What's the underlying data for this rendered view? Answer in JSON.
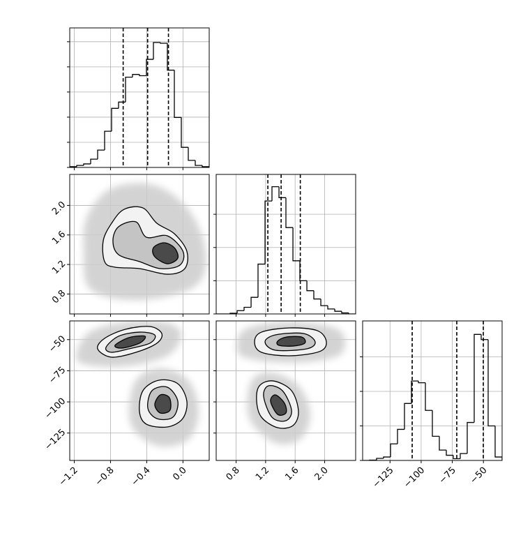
{
  "chart_data": {
    "type": "corner",
    "grid": true,
    "axes": [
      {
        "lim": [
          -1.25,
          0.29
        ],
        "ticks": [
          {
            "value": -1.2,
            "label": "−1.2"
          },
          {
            "value": -0.8,
            "label": "−0.8"
          },
          {
            "value": -0.4,
            "label": "−0.4"
          },
          {
            "value": 0,
            "label": "0.0"
          }
        ]
      },
      {
        "lim": [
          0.53,
          2.42
        ],
        "ticks": [
          0.8,
          1.2,
          1.6,
          {
            "value": 2,
            "label": "2.0"
          }
        ]
      },
      {
        "lim": [
          -147,
          -35
        ],
        "ticks": [
          {
            "value": -125,
            "label": "−125"
          },
          {
            "value": -100,
            "label": "−100"
          },
          {
            "value": -75,
            "label": "−75"
          },
          {
            "value": -50,
            "label": "−50"
          }
        ]
      }
    ],
    "histograms": [
      {
        "color": "#000000",
        "bins": [
          -1.25,
          -1.173,
          -1.096,
          -1.019,
          -0.942,
          -0.865,
          -0.788,
          -0.711,
          -0.634,
          -0.557,
          -0.48,
          -0.403,
          -0.326,
          -0.249,
          -0.172,
          -0.095,
          -0.018,
          0.059,
          0.136,
          0.213,
          0.29
        ],
        "counts": [
          0.03,
          0.08,
          0.14,
          0.33,
          0.69,
          1.44,
          2.35,
          2.6,
          3.59,
          3.7,
          3.65,
          4.3,
          4.97,
          4.94,
          3.87,
          1.99,
          0.8,
          0.28,
          0.08,
          0.03
        ],
        "ylim": [
          0,
          5.55
        ],
        "yticks": [
          0,
          1,
          2,
          3,
          4,
          5
        ],
        "quantiles": [
          -0.66,
          -0.39,
          -0.16
        ]
      },
      {
        "color": "#000000",
        "bins": [
          0.53,
          0.625,
          0.719,
          0.814,
          0.908,
          1.003,
          1.097,
          1.192,
          1.286,
          1.381,
          1.475,
          1.57,
          1.664,
          1.759,
          1.853,
          1.948,
          2.042,
          2.137,
          2.231,
          2.326,
          2.42
        ],
        "counts": [
          0,
          0,
          0.02,
          0.1,
          0.2,
          0.5,
          1.5,
          3.4,
          3.83,
          3.5,
          2.6,
          1.6,
          1.0,
          0.7,
          0.45,
          0.25,
          0.15,
          0.08,
          0.03,
          0
        ],
        "ylim": [
          0,
          4.2
        ],
        "yticks": [
          0,
          1,
          2,
          3
        ],
        "quantiles": [
          1.23,
          1.41,
          1.67
        ]
      },
      {
        "color": "#000000",
        "bins": [
          -147,
          -141.4,
          -135.8,
          -130.2,
          -124.6,
          -119,
          -113.4,
          -107.8,
          -102.2,
          -96.6,
          -91,
          -85.4,
          -79.8,
          -74.2,
          -68.6,
          -63,
          -57.4,
          -51.8,
          -46.2,
          -40.6,
          -35
        ],
        "counts": [
          0,
          0.01,
          0.06,
          0.1,
          0.48,
          0.9,
          1.65,
          2.3,
          2.25,
          1.45,
          0.7,
          0.3,
          0.15,
          0.05,
          0.2,
          1.1,
          3.65,
          3.5,
          1.0,
          0.1
        ],
        "ylim": [
          0,
          4.04
        ],
        "yticks": [
          0,
          1,
          2,
          3
        ],
        "quantiles": [
          -107.2,
          -71.4,
          -50.1
        ]
      }
    ],
    "pairs": [
      {
        "axes": [
          0,
          1
        ],
        "contours": [
          {
            "fill": "#cccccc",
            "x": [
              -1.096,
              -1.058,
              -0.788,
              -0.326,
              0.059,
              0.251,
              0.136,
              -0.48,
              -1.019
            ],
            "y": [
              1.38,
              1.852,
              2.231,
              2.278,
              1.947,
              1.38,
              0.908,
              0.719,
              0.86
            ]
          },
          {
            "fill": "#f2f2f2",
            "stroke": "#000000",
            "x": [
              -0.865,
              -0.88,
              -0.788,
              -0.65,
              -0.442,
              -0.288,
              -0.095,
              0.043,
              0.02,
              -0.172,
              -0.48,
              -0.75
            ],
            "y": [
              1.239,
              1.522,
              1.758,
              1.947,
              1.966,
              1.758,
              1.617,
              1.38,
              1.144,
              1.068,
              1.144,
              1.163
            ]
          },
          {
            "fill": "#c4c4c4",
            "stroke": "#000000",
            "x": [
              -0.773,
              -0.711,
              -0.519,
              -0.403,
              -0.172,
              0.0,
              -0.034,
              -0.249,
              -0.48,
              -0.711
            ],
            "y": [
              1.522,
              1.711,
              1.777,
              1.569,
              1.588,
              1.38,
              1.191,
              1.144,
              1.239,
              1.333
            ]
          },
          {
            "fill": "#4a4a4a",
            "stroke": "#000000",
            "x": [
              -0.326,
              -0.211,
              -0.095,
              -0.057,
              -0.172,
              -0.311
            ],
            "y": [
              1.427,
              1.494,
              1.427,
              1.286,
              1.21,
              1.305
            ]
          }
        ]
      },
      {
        "axes": [
          0,
          2
        ],
        "contours": [
          {
            "fill": "#cccccc",
            "x": [
              -1.173,
              -1.019,
              -0.634,
              -0.172,
              -0.018,
              -0.172,
              -0.634,
              -1.096
            ],
            "y": [
              -60.2,
              -43.4,
              -36.1,
              -36.7,
              -46.2,
              -63,
              -71.4,
              -69.7
            ]
          },
          {
            "fill": "#cccccc",
            "x": [
              -0.596,
              -0.519,
              -0.25,
              0.059,
              0.174,
              0.059,
              -0.25,
              -0.519
            ],
            "y": [
              -107.8,
              -82.6,
              -73.1,
              -82.6,
              -107.8,
              -130.2,
              -135.8,
              -124.6
            ]
          },
          {
            "fill": "#f2f2f2",
            "stroke": "#000000",
            "x": [
              -0.942,
              -0.865,
              -0.634,
              -0.365,
              -0.234,
              -0.288,
              -0.519,
              -0.788
            ],
            "y": [
              -57.4,
              -49,
              -41.7,
              -39.5,
              -45.1,
              -52.9,
              -60.2,
              -64.1
            ]
          },
          {
            "fill": "#f2f2f2",
            "stroke": "#000000",
            "x": [
              -0.48,
              -0.442,
              -0.265,
              -0.057,
              0.043,
              -0.003,
              -0.172,
              -0.403
            ],
            "y": [
              -107.8,
              -91,
              -82.6,
              -85.4,
              -99.4,
              -113.4,
              -120.1,
              -117.9
            ]
          },
          {
            "fill": "#c4c4c4",
            "stroke": "#000000",
            "x": [
              -0.85,
              -0.711,
              -0.48,
              -0.311,
              -0.365,
              -0.596,
              -0.788
            ],
            "y": [
              -56.3,
              -47.3,
              -44,
              -46.3,
              -52.9,
              -57.4,
              -60.2
            ]
          },
          {
            "fill": "#c4c4c4",
            "stroke": "#000000",
            "x": [
              -0.388,
              -0.342,
              -0.172,
              -0.057,
              -0.111,
              -0.288
            ],
            "y": [
              -104.9,
              -91,
              -88.2,
              -99.4,
              -112.3,
              -113.4
            ]
          },
          {
            "fill": "#4a4a4a",
            "stroke": "#000000",
            "x": [
              -0.75,
              -0.596,
              -0.419,
              -0.48,
              -0.673
            ],
            "y": [
              -54.6,
              -48.4,
              -47.3,
              -52.9,
              -56.8
            ]
          },
          {
            "fill": "#4a4a4a",
            "stroke": "#000000",
            "x": [
              -0.311,
              -0.25,
              -0.15,
              -0.143,
              -0.25
            ],
            "y": [
              -102.2,
              -94.4,
              -96.6,
              -106.7,
              -108.9
            ]
          }
        ]
      },
      {
        "axes": [
          1,
          2
        ],
        "contours": [
          {
            "fill": "#cccccc",
            "x": [
              0.814,
              0.955,
              1.522,
              2.137,
              2.279,
              2.137,
              1.522,
              0.908
            ],
            "y": [
              -52.9,
              -40.6,
              -36.1,
              -40.6,
              -52.9,
              -64.1,
              -68.6,
              -64.1
            ]
          },
          {
            "fill": "#cccccc",
            "x": [
              0.955,
              1.05,
              1.333,
              1.664,
              1.806,
              1.664,
              1.333,
              1.003
            ],
            "y": [
              -96.6,
              -79.8,
              -77,
              -88.2,
              -110.6,
              -130.2,
              -133,
              -116.2
            ]
          },
          {
            "fill": "#f2f2f2",
            "stroke": "#000000",
            "x": [
              1.05,
              1.144,
              1.522,
              1.9,
              2.023,
              1.929,
              1.522,
              1.144
            ],
            "y": [
              -51.8,
              -44,
              -40.6,
              -42.8,
              -51.8,
              -59.6,
              -63,
              -60.2
            ]
          },
          {
            "fill": "#f2f2f2",
            "stroke": "#000000",
            "x": [
              1.078,
              1.116,
              1.305,
              1.551,
              1.645,
              1.57,
              1.362,
              1.144
            ],
            "y": [
              -99.4,
              -87.1,
              -83.2,
              -91,
              -107.8,
              -119,
              -120.7,
              -112.3
            ]
          },
          {
            "fill": "#c4c4c4",
            "stroke": "#000000",
            "x": [
              1.192,
              1.333,
              1.711,
              1.871,
              1.758,
              1.333
            ],
            "y": [
              -51.8,
              -46.2,
              -45.1,
              -51.8,
              -57.4,
              -58.5
            ]
          },
          {
            "fill": "#c4c4c4",
            "stroke": "#000000",
            "x": [
              1.173,
              1.239,
              1.428,
              1.551,
              1.475,
              1.286
            ],
            "y": [
              -95.5,
              -87.1,
              -91,
              -106.7,
              -115.1,
              -112.3
            ]
          },
          {
            "fill": "#4a4a4a",
            "stroke": "#000000",
            "x": [
              1.362,
              1.475,
              1.692,
              1.73,
              1.57,
              1.381
            ],
            "y": [
              -51.3,
              -48,
              -48,
              -52.9,
              -55.2,
              -54.6
            ]
          },
          {
            "fill": "#4a4a4a",
            "stroke": "#000000",
            "x": [
              1.267,
              1.333,
              1.456,
              1.475,
              1.362
            ],
            "y": [
              -99.4,
              -94.4,
              -101.1,
              -108.9,
              -110
            ]
          }
        ]
      }
    ]
  }
}
